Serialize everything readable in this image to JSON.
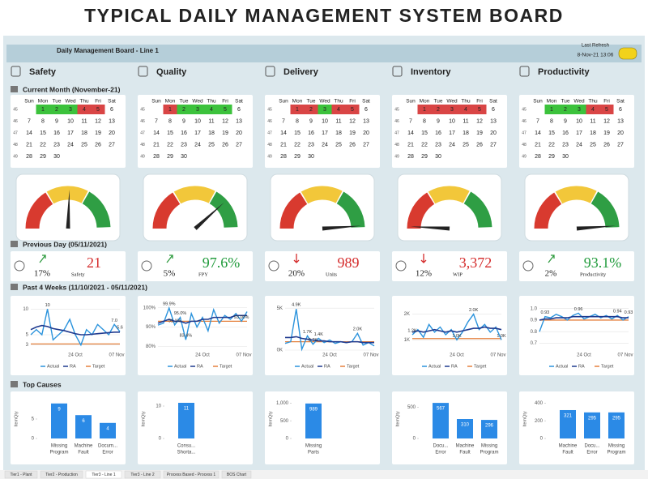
{
  "page_title": "TYPICAL DAILY MANAGEMENT SYSTEM  BOARD",
  "header": {
    "title": "Daily Management Board - Line 1",
    "refresh_label": "Last Refresh",
    "refresh_time": "8-Nov-21 13:06"
  },
  "sections": {
    "current_month": "Current Month (November-21)",
    "previous_day": "Previous Day (05/11/2021)",
    "past_weeks": "Past 4 Weeks (11/10/2021 - 05/11/2021)",
    "top_causes": "Top Causes"
  },
  "calendar": {
    "weekdays": [
      "Sun",
      "Mon",
      "Tue",
      "Wed",
      "Thu",
      "Fri",
      "Sat"
    ],
    "weeks": [
      {
        "week": 45,
        "days": [
          null,
          1,
          2,
          3,
          4,
          5,
          6
        ]
      },
      {
        "week": 46,
        "days": [
          7,
          8,
          9,
          10,
          11,
          12,
          13
        ]
      },
      {
        "week": 47,
        "days": [
          14,
          15,
          16,
          17,
          18,
          19,
          20
        ]
      },
      {
        "week": 48,
        "days": [
          21,
          22,
          23,
          24,
          25,
          26,
          27
        ]
      },
      {
        "week": 49,
        "days": [
          28,
          29,
          30,
          null,
          null,
          null,
          null
        ]
      }
    ]
  },
  "legend": {
    "names": [
      "Actual",
      "RA",
      "Target"
    ],
    "colors": [
      "#2b93dc",
      "#1f3a8f",
      "#e5813e"
    ]
  },
  "bar_axis_label": "ItemQty",
  "bar_color": "#2b8ae6",
  "columns": [
    {
      "name": "Safety",
      "status_colors": [
        "#3cc23c",
        "#3cc23c",
        "#3cc23c",
        "#d94545",
        "#d94545"
      ],
      "kpi": {
        "trend": "up",
        "change": "17%",
        "value": "21",
        "label": "Safety",
        "value_color": "#d42b2b"
      },
      "trend": {
        "ylim": [
          2,
          11
        ],
        "yticks": [
          3,
          5,
          10
        ],
        "xticks": [
          "24 Oct",
          "07 Nov"
        ],
        "actual": [
          5,
          6,
          5,
          10,
          4,
          5,
          6,
          8,
          5,
          3,
          6,
          5,
          7,
          6,
          5,
          7,
          5.6
        ],
        "ra": [
          6,
          6.5,
          6.8,
          6.6,
          6.2,
          6,
          5.8,
          5.5,
          5.2,
          5,
          5,
          5.1,
          5.2,
          5.3,
          5.4,
          5.5,
          5.5
        ],
        "target": 3.2,
        "annotations": [
          {
            "index": 3,
            "value": 10,
            "label": "10"
          },
          {
            "index": 15,
            "value": 7,
            "label": "7.0"
          },
          {
            "index": 16,
            "value": 5.6,
            "label": "5.6"
          }
        ]
      },
      "causes": {
        "ylim": [
          0,
          10
        ],
        "yticks": [
          0,
          5
        ],
        "categories": [
          [
            "Missing",
            "Program"
          ],
          [
            "Machine",
            "Fault"
          ],
          [
            "Docum...",
            "Error"
          ]
        ],
        "values": [
          9,
          6,
          4
        ]
      }
    },
    {
      "name": "Quality",
      "status_colors": [
        "#d94545",
        "#3cc23c",
        "#3cc23c",
        "#3cc23c",
        "#3cc23c"
      ],
      "kpi": {
        "trend": "up",
        "change": "5%",
        "value": "97.6%",
        "label": "FPY",
        "value_color": "#1f9a3a"
      },
      "trend": {
        "ylim": [
          78,
          102
        ],
        "yticks": [
          {
            "value": 80,
            "label": "80%"
          },
          {
            "value": 90,
            "label": "90%"
          },
          {
            "value": 100,
            "label": "100%"
          }
        ],
        "xticks": [
          "24 Oct",
          "07 Nov"
        ],
        "actual": [
          91,
          92,
          99.9,
          91.1,
          95,
          83.4,
          97,
          90,
          95,
          88,
          99,
          92,
          96,
          94,
          97,
          93,
          98
        ],
        "ra": [
          92,
          93,
          94,
          93,
          93,
          92,
          93,
          93,
          94,
          94,
          95,
          95,
          95,
          95,
          96,
          96,
          96
        ],
        "target": 93,
        "annotations": [
          {
            "index": 2,
            "value": 99.9,
            "label": "99.9%"
          },
          {
            "index": 4,
            "value": 95,
            "label": "95.0%"
          },
          {
            "index": 3,
            "value": 91.1,
            "label": "91.1%"
          },
          {
            "index": 5,
            "value": 83.4,
            "label": "83.4%"
          },
          {
            "index": 15,
            "value": 93,
            "label": "93.00%"
          }
        ]
      },
      "causes": {
        "ylim": [
          0,
          12
        ],
        "yticks": [
          0,
          10
        ],
        "categories": [
          [
            "Consu...",
            "Shorta..."
          ]
        ],
        "values": [
          11
        ]
      }
    },
    {
      "name": "Delivery",
      "status_colors": [
        "#d94545",
        "#d94545",
        "#3cc23c",
        "#d94545",
        "#d94545"
      ],
      "kpi": {
        "trend": "down",
        "change": "20%",
        "value": "989",
        "label": "Units",
        "value_color": "#d42b2b"
      },
      "trend": {
        "ylim": [
          0,
          5.5
        ],
        "yticks": [
          {
            "value": 0,
            "label": "0K"
          },
          {
            "value": 5,
            "label": "5K"
          }
        ],
        "xticks": [
          "24 Oct",
          "07 Nov"
        ],
        "actual": [
          0.8,
          1,
          4.9,
          0.1,
          1.7,
          0.7,
          1.4,
          0.9,
          1.2,
          0.8,
          1,
          0.9,
          1,
          2,
          0.6,
          0.9,
          0.5
        ],
        "ra": [
          1.5,
          1.5,
          1.6,
          1.4,
          1.3,
          1.2,
          1.1,
          1.1,
          1,
          1,
          1,
          0.9,
          1,
          1,
          0.9,
          0.9,
          0.9
        ],
        "target": 1,
        "annotations": [
          {
            "index": 2,
            "value": 4.9,
            "label": "4.9K"
          },
          {
            "index": 4,
            "value": 1.7,
            "label": "1.7K"
          },
          {
            "index": 6,
            "value": 1.4,
            "label": "1.4K"
          },
          {
            "index": 5,
            "value": 0.7,
            "label": "0.7K"
          },
          {
            "index": 13,
            "value": 2,
            "label": "2.0K"
          }
        ]
      },
      "causes": {
        "ylim": [
          0,
          1100
        ],
        "yticks": [
          0,
          500,
          {
            "value": 1000,
            "label": "1,000"
          }
        ],
        "categories": [
          [
            "Missing",
            "Parts"
          ]
        ],
        "values": [
          989
        ]
      }
    },
    {
      "name": "Inventory",
      "status_colors": [
        "#d94545",
        "#d94545",
        "#d94545",
        "#d94545",
        "#d94545"
      ],
      "kpi": {
        "trend": "down",
        "change": "12%",
        "value": "3,372",
        "label": "WIP",
        "value_color": "#d42b2b"
      },
      "trend": {
        "ylim": [
          0.6,
          2.4
        ],
        "yticks": [
          {
            "value": 1,
            "label": "1K"
          },
          {
            "value": 2,
            "label": "2K"
          }
        ],
        "xticks": [
          "24 Oct",
          "07 Nov"
        ],
        "actual": [
          1.2,
          1.4,
          1.1,
          1.6,
          1.3,
          1.5,
          1.2,
          1.4,
          1,
          1.3,
          1.7,
          2,
          1.4,
          1.6,
          1.3,
          1.5,
          1
        ],
        "ra": [
          1.3,
          1.35,
          1.3,
          1.35,
          1.4,
          1.35,
          1.3,
          1.35,
          1.3,
          1.35,
          1.4,
          1.45,
          1.45,
          1.5,
          1.45,
          1.45,
          1.4
        ],
        "target": 1.05,
        "annotations": [
          {
            "index": 0,
            "value": 1.2,
            "label": "1.2K"
          },
          {
            "index": 11,
            "value": 2,
            "label": "2.0K"
          },
          {
            "index": 8,
            "value": 1,
            "label": "1.0K"
          },
          {
            "index": 16,
            "value": 1,
            "label": "1.0K"
          }
        ]
      },
      "causes": {
        "ylim": [
          0,
          620
        ],
        "yticks": [
          0,
          500
        ],
        "categories": [
          [
            "Docu...",
            "Error"
          ],
          [
            "Machine",
            "Fault"
          ],
          [
            "Missing",
            "Program"
          ]
        ],
        "values": [
          567,
          310,
          296
        ]
      }
    },
    {
      "name": "Productivity",
      "status_colors": [
        "#3cc23c",
        "#3cc23c",
        "#3cc23c",
        "#d94545",
        "#d94545"
      ],
      "kpi": {
        "trend": "up",
        "change": "2%",
        "value": "93.1%",
        "label": "Productivity",
        "value_color": "#1f9a3a"
      },
      "trend": {
        "ylim": [
          0.64,
          1.04
        ],
        "yticks": [
          0.7,
          0.8,
          0.9,
          {
            "value": 1,
            "label": "1.0"
          }
        ],
        "xticks": [
          "24 Oct",
          "07 Nov"
        ],
        "actual": [
          0.8,
          0.93,
          0.92,
          0.95,
          0.93,
          0.9,
          0.94,
          0.96,
          0.91,
          0.93,
          0.95,
          0.92,
          0.94,
          0.91,
          0.94,
          0.9,
          0.93
        ],
        "ra": [
          0.9,
          0.91,
          0.91,
          0.92,
          0.92,
          0.92,
          0.93,
          0.93,
          0.93,
          0.93,
          0.93,
          0.93,
          0.93,
          0.93,
          0.93,
          0.92,
          0.92
        ],
        "target": 0.9,
        "annotations": [
          {
            "index": 1,
            "value": 0.93,
            "label": "0.93"
          },
          {
            "index": 7,
            "value": 0.96,
            "label": "0.96"
          },
          {
            "index": 14,
            "value": 0.94,
            "label": "0.94"
          },
          {
            "index": 16,
            "value": 0.93,
            "label": "0.93"
          }
        ]
      },
      "causes": {
        "ylim": [
          0,
          440
        ],
        "yticks": [
          0,
          200,
          400
        ],
        "categories": [
          [
            "Machine",
            "Fault"
          ],
          [
            "Docu...",
            "Error"
          ],
          [
            "Missing",
            "Program"
          ]
        ],
        "values": [
          321,
          295,
          295
        ]
      }
    }
  ],
  "tabs": [
    "Tier1 - Plant",
    "Tier2 - Production",
    "Tier3 - Line 1",
    "Tier3 - Line 2",
    "Process Based - Process 1",
    "BOS Chart"
  ]
}
